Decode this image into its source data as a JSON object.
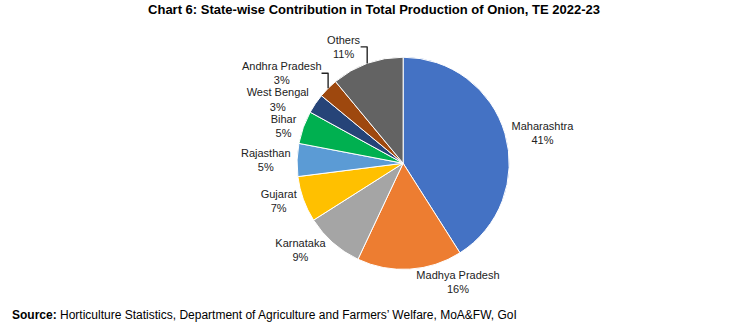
{
  "chart_data": {
    "type": "pie",
    "title": "Chart 6: State-wise Contribution in Total Production of Onion, TE 2022-23",
    "categories": [
      "Maharashtra",
      "Madhya Pradesh",
      "Karnataka",
      "Gujarat",
      "Rajasthan",
      "Bihar",
      "West Bengal",
      "Andhra Pradesh",
      "Others"
    ],
    "values": [
      41,
      16,
      9,
      7,
      5,
      5,
      3,
      3,
      11
    ],
    "value_labels": [
      "41%",
      "16%",
      "9%",
      "7%",
      "5%",
      "5%",
      "3%",
      "3%",
      "11%"
    ],
    "colors": [
      "#4472C4",
      "#ED7D31",
      "#A5A5A5",
      "#FFC000",
      "#5B9BD5",
      "#00B050",
      "#264478",
      "#9E480E",
      "#636363"
    ],
    "data_labels": true,
    "source": {
      "label": "Source:",
      "text": "Horticulture Statistics, Department of Agriculture and Farmers’ Welfare, MoA&FW, GoI"
    }
  }
}
